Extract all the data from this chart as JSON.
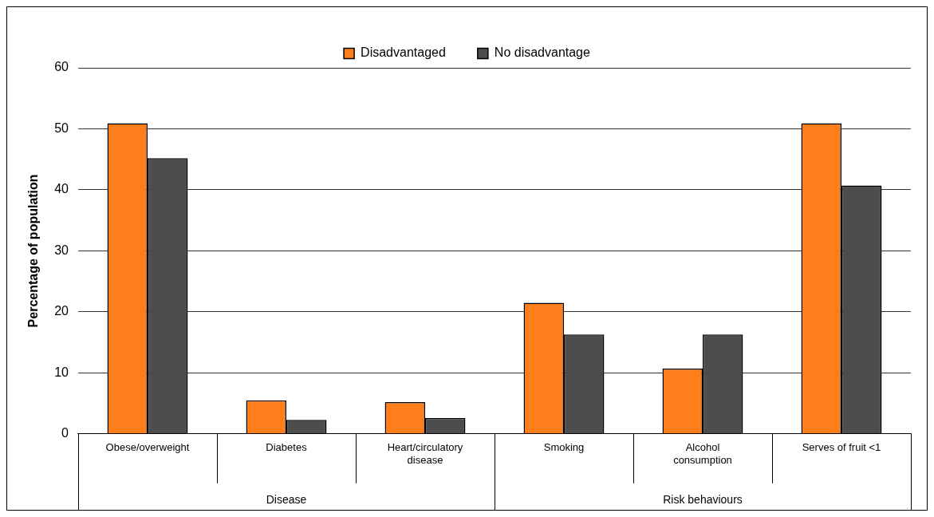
{
  "chart_data": {
    "type": "bar",
    "ylabel": "Percentage of population",
    "categories": [
      "Obese/overweight",
      "Diabetes",
      "Heart/circulatory disease",
      "Smoking",
      "Alcohol consumption",
      "Serves of fruit <1"
    ],
    "series": [
      {
        "name": "Disadvantaged",
        "color": "#fd7e1a",
        "values": [
          50.9,
          5.5,
          5.2,
          21.5,
          10.7,
          50.9
        ]
      },
      {
        "name": "No disadvantage",
        "color": "#4d4d4d",
        "values": [
          45.2,
          2.3,
          2.6,
          16.3,
          16.3,
          40.7
        ]
      }
    ],
    "annotations": [
      "Disease",
      "Risk behaviours"
    ],
    "ylim": [
      0,
      60
    ],
    "yticks": [
      0,
      10,
      20,
      30,
      40,
      50,
      60
    ],
    "grid": "y",
    "legend": "top"
  }
}
